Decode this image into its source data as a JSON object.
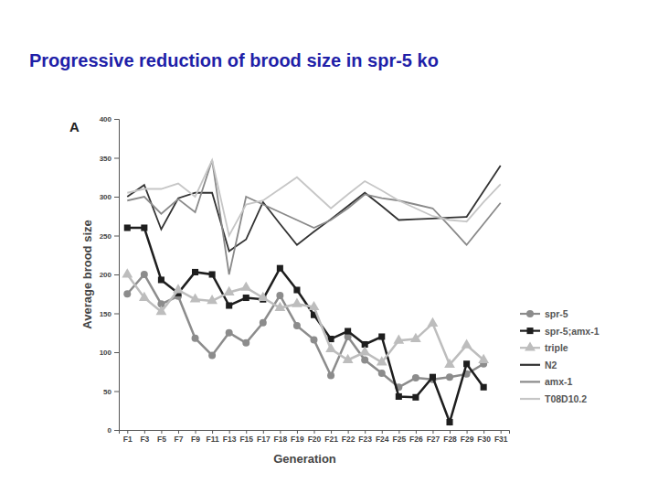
{
  "chart_data": {
    "type": "line",
    "title": "Progressive reduction of brood size in spr-5 ko",
    "annotations": [
      "A"
    ],
    "x_label": "Generation",
    "y_label": "Average brood size",
    "categories": [
      "F1",
      "F3",
      "F5",
      "F7",
      "F9",
      "F11",
      "F13",
      "F15",
      "F17",
      "F18",
      "F19",
      "F20",
      "F21",
      "F22",
      "F23",
      "F24",
      "F25",
      "F26",
      "F27",
      "F28",
      "F29",
      "F30",
      "F31"
    ],
    "ylim": [
      0,
      400
    ],
    "yticks": [
      0,
      50,
      100,
      150,
      200,
      250,
      300,
      350,
      400
    ],
    "grid": false,
    "legend": "right",
    "series": [
      {
        "name": "spr-5",
        "color": "#8c8c8c",
        "marker": "circle",
        "line_style": "solid",
        "values": [
          175,
          200,
          162,
          172,
          118,
          96,
          125,
          112,
          138,
          173,
          134,
          116,
          70,
          120,
          90,
          73,
          55,
          67,
          65,
          68,
          72,
          85,
          null
        ]
      },
      {
        "name": "spr-5;amx-1",
        "color": "#1e1e1e",
        "marker": "square",
        "line_style": "solid",
        "values": [
          260,
          260,
          193,
          176,
          203,
          200,
          160,
          170,
          168,
          208,
          180,
          148,
          117,
          127,
          110,
          120,
          43,
          42,
          68,
          10,
          85,
          55,
          null
        ]
      },
      {
        "name": "triple",
        "color": "#bdbdbd",
        "marker": "triangle",
        "line_style": "solid",
        "values": [
          200,
          170,
          152,
          180,
          168,
          166,
          177,
          183,
          170,
          157,
          162,
          158,
          104,
          90,
          100,
          87,
          115,
          117,
          137,
          84,
          109,
          90,
          null
        ]
      },
      {
        "name": "N2",
        "color": "#333333",
        "marker": "none",
        "line_style": "solid",
        "values": [
          300,
          315,
          258,
          298,
          305,
          305,
          230,
          245,
          293,
          265,
          238,
          255,
          271,
          288,
          305,
          288,
          270,
          271,
          272,
          273,
          274,
          307,
          340
        ]
      },
      {
        "name": "amx-1",
        "color": "#8a8a8a",
        "marker": "none",
        "line_style": "solid",
        "values": [
          295,
          300,
          278,
          297,
          280,
          347,
          200,
          300,
          290,
          280,
          270,
          260,
          270,
          285,
          303,
          298,
          295,
          290,
          285,
          262,
          238,
          265,
          292
        ]
      },
      {
        "name": "T08D10.2",
        "color": "#c6c6c6",
        "marker": "none",
        "line_style": "solid",
        "values": [
          305,
          310,
          310,
          317,
          300,
          347,
          250,
          290,
          295,
          310,
          325,
          305,
          285,
          303,
          320,
          308,
          295,
          285,
          275,
          270,
          268,
          293,
          316
        ]
      }
    ]
  }
}
